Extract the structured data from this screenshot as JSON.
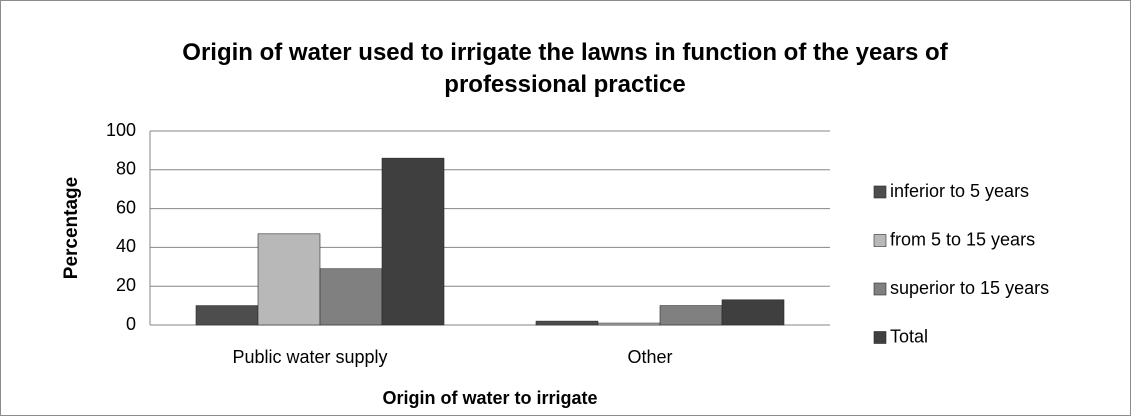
{
  "chart_data": {
    "type": "bar",
    "title": "Origin of water used to irrigate the lawns in function of the years of professional practice",
    "xlabel": "Origin of water to irrigate",
    "ylabel": "Percentage",
    "categories": [
      "Public water supply",
      "Other"
    ],
    "series": [
      {
        "name": "inferior to 5 years",
        "color": "#4d4d4d",
        "values": [
          10,
          2
        ]
      },
      {
        "name": "from 5 to 15 years",
        "color": "#b8b8b8",
        "values": [
          47,
          1
        ]
      },
      {
        "name": "superior to 15 years",
        "color": "#808080",
        "values": [
          29,
          10
        ]
      },
      {
        "name": "Total",
        "color": "#3f3f3f",
        "values": [
          86,
          13
        ]
      }
    ],
    "ylim": [
      0,
      100
    ],
    "yticks": [
      0,
      20,
      40,
      60,
      80,
      100
    ],
    "grid": true,
    "legend": "right"
  }
}
